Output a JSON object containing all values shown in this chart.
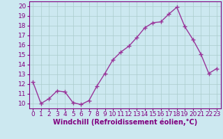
{
  "x": [
    0,
    1,
    2,
    3,
    4,
    5,
    6,
    7,
    8,
    9,
    10,
    11,
    12,
    13,
    14,
    15,
    16,
    17,
    18,
    19,
    20,
    21,
    22,
    23
  ],
  "y": [
    12.2,
    10.0,
    10.5,
    11.3,
    11.2,
    10.1,
    9.9,
    10.3,
    11.8,
    13.1,
    14.5,
    15.3,
    15.9,
    16.8,
    17.8,
    18.3,
    18.4,
    19.2,
    19.9,
    17.9,
    16.6,
    15.1,
    13.1,
    13.6
  ],
  "line_color": "#993399",
  "marker": "+",
  "marker_size": 4,
  "linewidth": 1.0,
  "xlabel": "Windchill (Refroidissement éolien,°C)",
  "xlabel_fontsize": 7,
  "xlim": [
    -0.5,
    23.5
  ],
  "ylim": [
    9.5,
    20.5
  ],
  "yticks": [
    10,
    11,
    12,
    13,
    14,
    15,
    16,
    17,
    18,
    19,
    20
  ],
  "xticks": [
    0,
    1,
    2,
    3,
    4,
    5,
    6,
    7,
    8,
    9,
    10,
    11,
    12,
    13,
    14,
    15,
    16,
    17,
    18,
    19,
    20,
    21,
    22,
    23
  ],
  "bg_color": "#cce8f0",
  "grid_color": "#aacccc",
  "tick_color": "#800080",
  "axis_color": "#800080",
  "label_color": "#800080",
  "tick_fontsize": 6.5
}
